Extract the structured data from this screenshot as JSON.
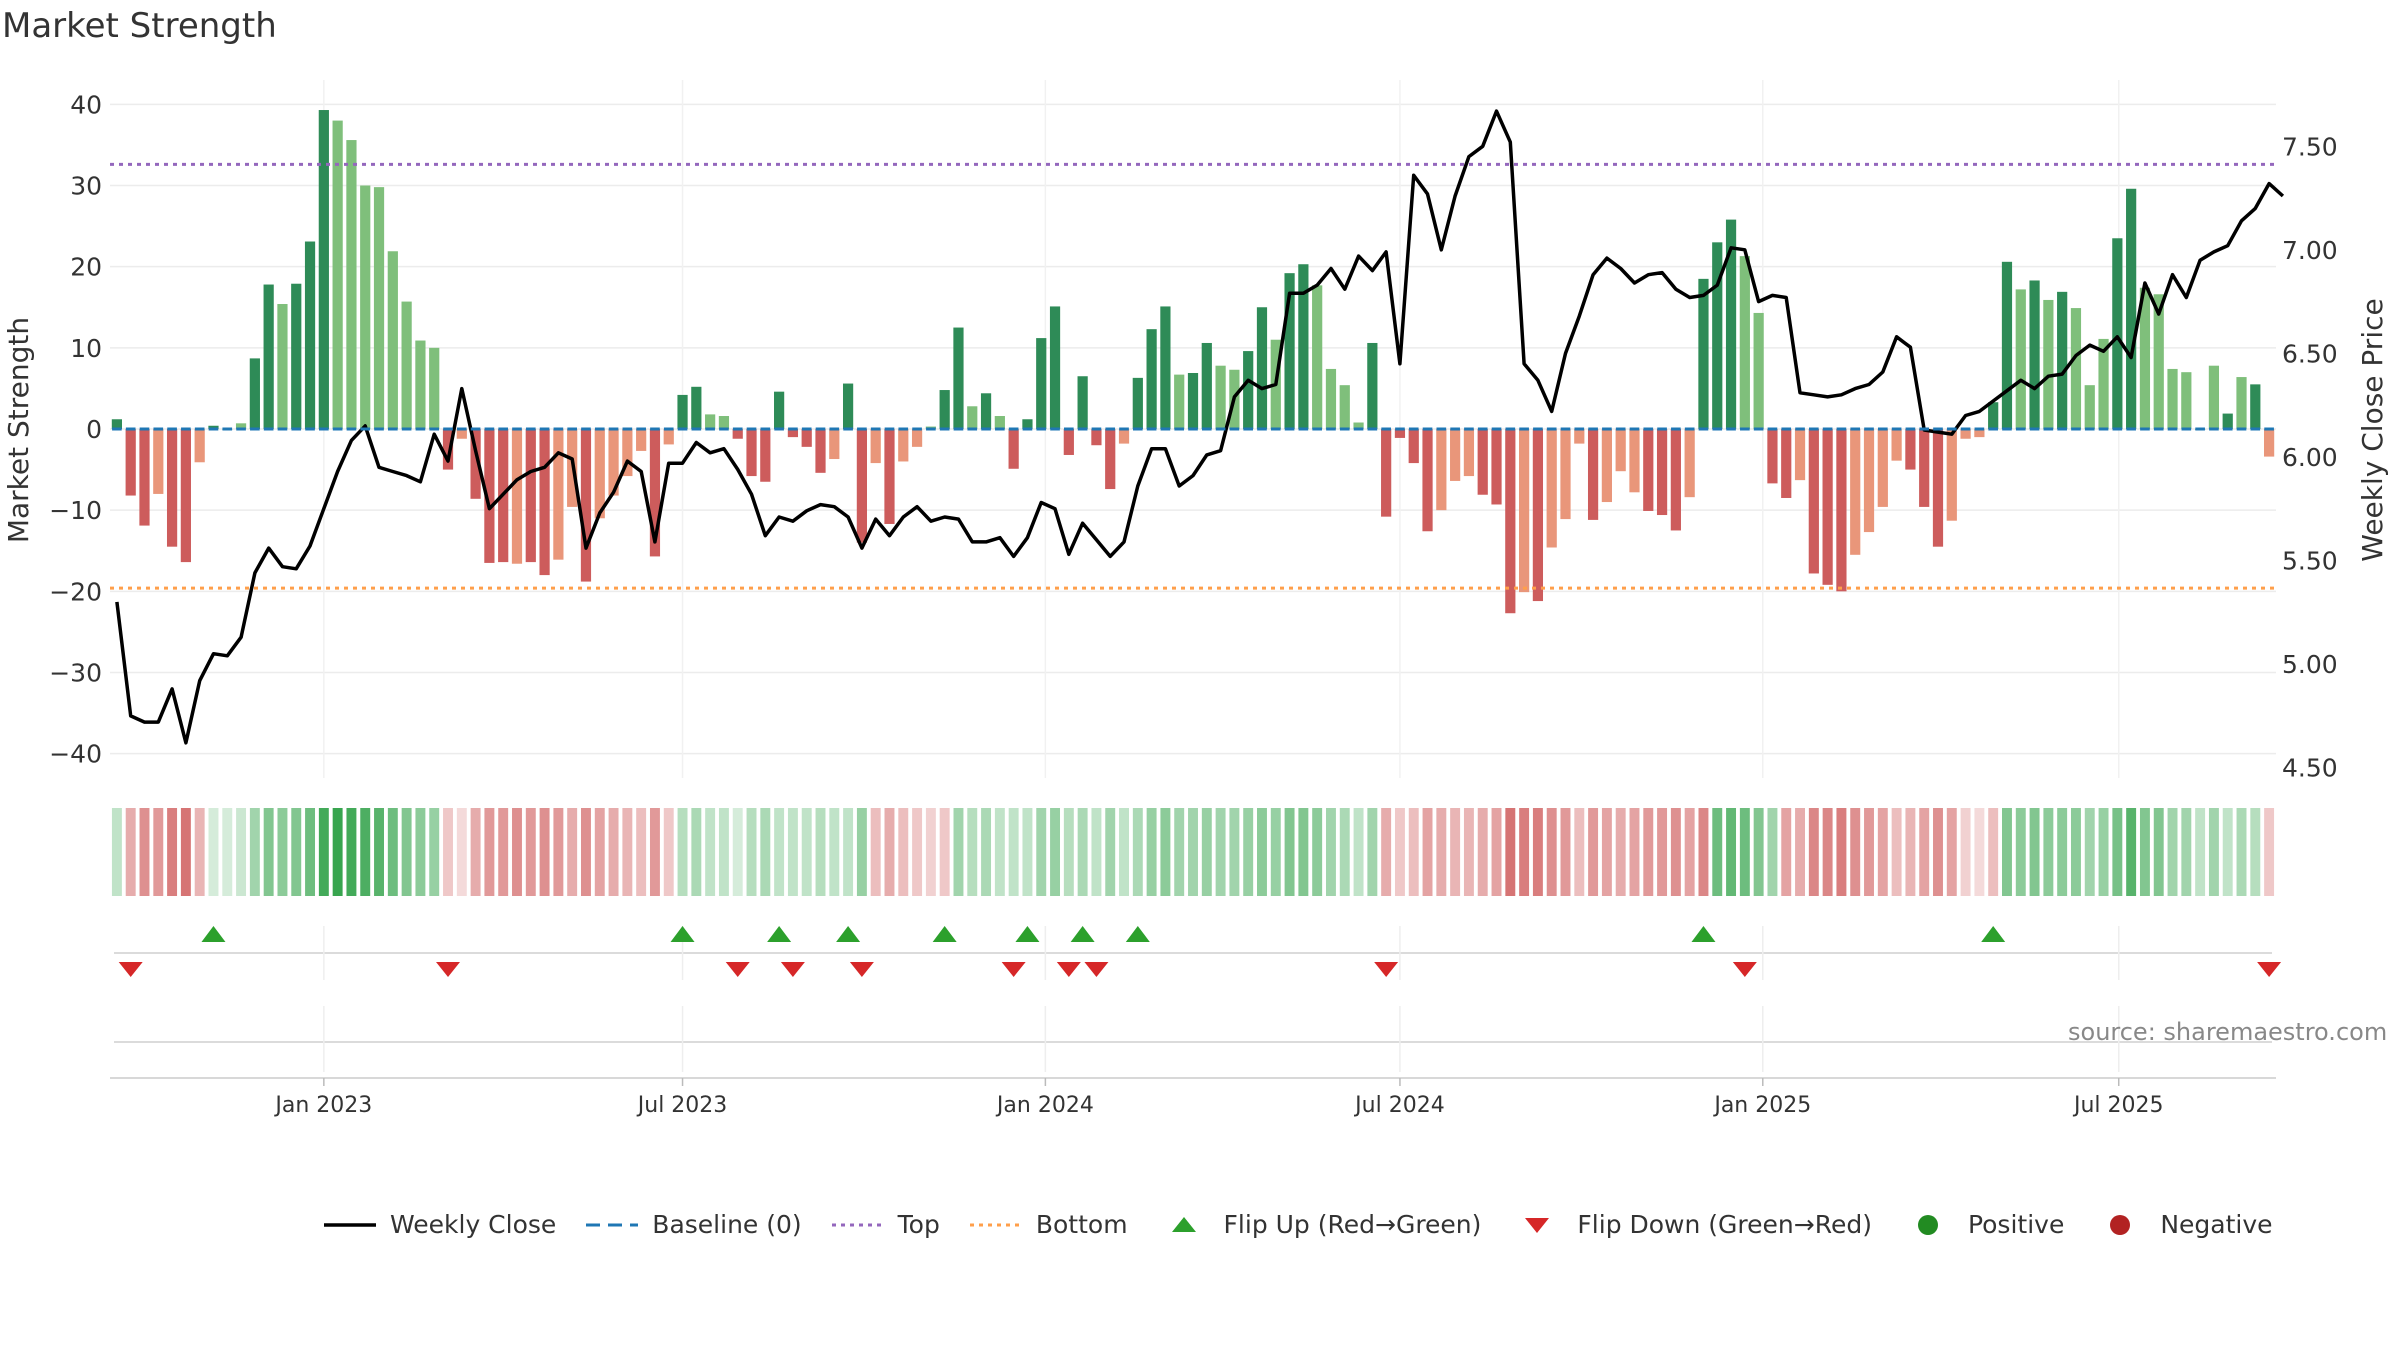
{
  "title": "Market Strength",
  "source_note": "source: sharemaestro.com",
  "colors": {
    "strong_green": "#2e8b57",
    "light_green": "#7fbf7b",
    "strong_red": "#cd5c5c",
    "light_red": "#e9967a",
    "close_line": "#000000",
    "baseline": "#1f77b4",
    "top": "#9467bd",
    "bottom": "#ff9f4a",
    "flip_up": "#2ca02c",
    "flip_down": "#d62728",
    "positive": "#228b22",
    "negative": "#b22222"
  },
  "legend": [
    {
      "key": "close",
      "label": "Weekly Close"
    },
    {
      "key": "baseline",
      "label": "Baseline (0)"
    },
    {
      "key": "top",
      "label": "Top"
    },
    {
      "key": "bottom",
      "label": "Bottom"
    },
    {
      "key": "flip_up",
      "label": "Flip Up (Red→Green)"
    },
    {
      "key": "flip_down",
      "label": "Flip Down (Green→Red)"
    },
    {
      "key": "positive",
      "label": "Positive"
    },
    {
      "key": "negative",
      "label": "Negative"
    }
  ],
  "chart_data": {
    "type": "bar",
    "ylabel": "Market Strength",
    "ylabel_right": "Weekly Close Price",
    "ylim": [
      -43,
      43
    ],
    "y_ticks": [
      -40,
      -30,
      -20,
      -10,
      0,
      10,
      20,
      30,
      40
    ],
    "y_tick_labels": [
      "−40",
      "−30",
      "−20",
      "−10",
      "0",
      "10",
      "20",
      "30",
      "40"
    ],
    "ylim_right": [
      4.45,
      7.82
    ],
    "y_right_ticks": [
      4.5,
      5.0,
      5.5,
      6.0,
      6.5,
      7.0,
      7.5
    ],
    "y_right_tick_labels": [
      "4.50",
      "5.00",
      "5.50",
      "6.00",
      "6.50",
      "7.00",
      "7.50"
    ],
    "x_tick_labels": [
      "Jan 2023",
      "Jul 2023",
      "Jan 2024",
      "Jul 2024",
      "Jan 2025",
      "Jul 2025"
    ],
    "x_tick_weeks": [
      15,
      41,
      67.3,
      93,
      119.3,
      145.1
    ],
    "top_level": 32.6,
    "bottom_level": -19.6,
    "baseline": 0,
    "strength": [
      1.2,
      -8.2,
      -11.9,
      -8.0,
      -14.5,
      -16.4,
      -4.1,
      0.4,
      0.0,
      0.7,
      8.7,
      17.8,
      15.4,
      17.9,
      23.1,
      39.3,
      38.0,
      35.6,
      30.0,
      29.8,
      21.9,
      15.7,
      10.9,
      10.0,
      -5.0,
      -1.2,
      -8.6,
      -16.5,
      -16.4,
      -16.6,
      -16.4,
      -18.0,
      -16.1,
      -9.6,
      -18.8,
      -11.0,
      -8.2,
      -5.8,
      -2.7,
      -15.7,
      -1.9,
      4.2,
      5.2,
      1.8,
      1.6,
      -1.2,
      -5.8,
      -6.5,
      4.6,
      -1.0,
      -2.2,
      -5.4,
      -3.7,
      5.6,
      -14.0,
      -4.2,
      -11.7,
      -4.0,
      -2.2,
      0.3,
      4.8,
      12.5,
      2.8,
      4.4,
      1.6,
      -4.9,
      1.2,
      11.2,
      15.1,
      -3.2,
      6.5,
      -2.0,
      -7.4,
      -1.8,
      6.3,
      12.3,
      15.1,
      6.7,
      6.9,
      10.6,
      7.8,
      7.3,
      9.6,
      15.0,
      11.0,
      19.2,
      20.3,
      17.7,
      7.4,
      5.4,
      0.8,
      10.6,
      -10.8,
      -1.1,
      -4.2,
      -12.6,
      -10.0,
      -6.4,
      -5.8,
      -8.1,
      -9.3,
      -22.7,
      -20.1,
      -21.2,
      -14.6,
      -11.1,
      -1.8,
      -11.2,
      -9.0,
      -5.2,
      -7.8,
      -10.1,
      -10.6,
      -12.5,
      -8.4,
      18.5,
      23.0,
      25.8,
      21.3,
      14.3,
      -6.7,
      -8.5,
      -6.3,
      -17.8,
      -19.2,
      -20.0,
      -15.5,
      -12.7,
      -9.6,
      -3.9,
      -5.0,
      -9.6,
      -14.5,
      -11.3,
      -1.2,
      -1.0,
      3.3,
      20.6,
      17.2,
      18.3,
      15.9,
      16.9,
      14.9,
      5.4,
      11.1,
      23.5,
      29.6,
      17.4,
      16.6,
      7.4,
      7.0,
      0.0,
      7.8,
      1.9,
      6.4,
      5.5,
      -3.4
    ],
    "strength_shade": [
      "dark",
      "dark",
      "dark",
      "light",
      "dark",
      "dark",
      "light",
      "dark",
      "light",
      "light",
      "dark",
      "dark",
      "light",
      "dark",
      "dark",
      "dark",
      "light",
      "light",
      "light",
      "light",
      "light",
      "light",
      "light",
      "light",
      "dark",
      "light",
      "dark",
      "dark",
      "dark",
      "light",
      "dark",
      "dark",
      "light",
      "light",
      "dark",
      "light",
      "light",
      "light",
      "light",
      "dark",
      "light",
      "dark",
      "dark",
      "light",
      "light",
      "dark",
      "dark",
      "dark",
      "dark",
      "dark",
      "dark",
      "dark",
      "light",
      "dark",
      "dark",
      "light",
      "dark",
      "light",
      "light",
      "light",
      "dark",
      "dark",
      "light",
      "dark",
      "light",
      "dark",
      "dark",
      "dark",
      "dark",
      "dark",
      "dark",
      "dark",
      "dark",
      "light",
      "dark",
      "dark",
      "dark",
      "light",
      "dark",
      "dark",
      "light",
      "light",
      "dark",
      "dark",
      "light",
      "dark",
      "dark",
      "light",
      "light",
      "light",
      "light",
      "dark",
      "dark",
      "dark",
      "dark",
      "dark",
      "light",
      "light",
      "light",
      "dark",
      "dark",
      "dark",
      "light",
      "dark",
      "light",
      "light",
      "light",
      "dark",
      "light",
      "light",
      "light",
      "dark",
      "dark",
      "dark",
      "light",
      "dark",
      "dark",
      "dark",
      "light",
      "light",
      "dark",
      "dark",
      "light",
      "dark",
      "dark",
      "dark",
      "light",
      "light",
      "light",
      "light",
      "dark",
      "dark",
      "dark",
      "light",
      "light",
      "light",
      "dark",
      "dark",
      "light",
      "dark",
      "light",
      "dark",
      "light",
      "light",
      "light",
      "dark",
      "dark",
      "light",
      "light",
      "light",
      "light",
      "dark",
      "light",
      "dark",
      "light",
      "dark"
    ],
    "close": [
      5.3,
      4.75,
      4.72,
      4.72,
      4.88,
      4.62,
      4.92,
      5.05,
      5.04,
      5.13,
      5.44,
      5.56,
      5.47,
      5.46,
      5.57,
      5.75,
      5.93,
      6.08,
      6.15,
      5.95,
      5.93,
      5.91,
      5.88,
      6.11,
      5.98,
      6.33,
      6.03,
      5.75,
      5.82,
      5.89,
      5.93,
      5.95,
      6.02,
      5.99,
      5.56,
      5.73,
      5.83,
      5.98,
      5.93,
      5.59,
      5.97,
      5.97,
      6.07,
      6.02,
      6.04,
      5.94,
      5.82,
      5.62,
      5.71,
      5.69,
      5.74,
      5.77,
      5.76,
      5.71,
      5.56,
      5.7,
      5.62,
      5.71,
      5.76,
      5.69,
      5.71,
      5.7,
      5.59,
      5.59,
      5.61,
      5.52,
      5.61,
      5.78,
      5.75,
      5.53,
      5.68,
      5.6,
      5.52,
      5.59,
      5.86,
      6.04,
      6.04,
      5.86,
      5.91,
      6.01,
      6.03,
      6.29,
      6.37,
      6.33,
      6.35,
      6.79,
      6.79,
      6.83,
      6.91,
      6.81,
      6.97,
      6.9,
      6.99,
      6.45,
      7.36,
      7.27,
      7.0,
      7.26,
      7.45,
      7.5,
      7.67,
      7.52,
      6.45,
      6.37,
      6.22,
      6.5,
      6.68,
      6.88,
      6.96,
      6.91,
      6.84,
      6.88,
      6.89,
      6.81,
      6.77,
      6.78,
      6.83,
      7.01,
      7.0,
      6.75,
      6.78,
      6.77,
      6.31,
      6.3,
      6.29,
      6.3,
      6.33,
      6.35,
      6.41,
      6.58,
      6.53,
      6.13,
      6.12,
      6.11,
      6.2,
      6.22,
      6.27,
      6.32,
      6.37,
      6.33,
      6.39,
      6.4,
      6.49,
      6.54,
      6.51,
      6.58,
      6.48,
      6.84,
      6.69,
      6.88,
      6.77,
      6.95,
      6.99,
      7.02,
      7.14,
      7.2,
      7.32,
      7.26
    ],
    "regime": [
      "g",
      "r",
      "r",
      "r",
      "r",
      "r",
      "r",
      "g",
      "g",
      "g",
      "g",
      "g",
      "g",
      "g",
      "g",
      "g",
      "g",
      "g",
      "g",
      "g",
      "g",
      "g",
      "g",
      "g",
      "r",
      "r",
      "r",
      "r",
      "r",
      "r",
      "r",
      "r",
      "r",
      "r",
      "r",
      "r",
      "r",
      "r",
      "r",
      "r",
      "r",
      "g",
      "g",
      "g",
      "g",
      "g",
      "g",
      "g",
      "g",
      "g",
      "g",
      "g",
      "g",
      "g",
      "g",
      "r",
      "r",
      "r",
      "r",
      "r",
      "r",
      "g",
      "g",
      "g",
      "g",
      "g",
      "g",
      "g",
      "g",
      "g",
      "g",
      "g",
      "g",
      "g",
      "g",
      "g",
      "g",
      "g",
      "g",
      "g",
      "g",
      "g",
      "g",
      "g",
      "g",
      "g",
      "g",
      "g",
      "g",
      "g",
      "g",
      "g",
      "r",
      "r",
      "r",
      "r",
      "r",
      "r",
      "r",
      "r",
      "r",
      "r",
      "r",
      "r",
      "r",
      "r",
      "r",
      "r",
      "r",
      "r",
      "r",
      "r",
      "r",
      "r",
      "r",
      "r",
      "g",
      "g",
      "g",
      "g",
      "g",
      "r",
      "r",
      "r",
      "r",
      "r",
      "r",
      "r",
      "r",
      "r",
      "r",
      "r",
      "r",
      "r",
      "r",
      "r",
      "r",
      "g",
      "g",
      "g",
      "g",
      "g",
      "g",
      "g",
      "g",
      "g",
      "g",
      "g",
      "g",
      "g",
      "g",
      "g",
      "g",
      "g",
      "g",
      "g",
      "r"
    ],
    "heat": [
      0.3,
      0.45,
      0.6,
      0.55,
      0.7,
      0.75,
      0.4,
      0.2,
      0.2,
      0.25,
      0.45,
      0.6,
      0.55,
      0.6,
      0.7,
      0.9,
      0.95,
      0.9,
      0.85,
      0.8,
      0.7,
      0.6,
      0.55,
      0.5,
      0.3,
      0.2,
      0.45,
      0.55,
      0.55,
      0.6,
      0.55,
      0.6,
      0.55,
      0.45,
      0.6,
      0.5,
      0.45,
      0.4,
      0.35,
      0.55,
      0.3,
      0.35,
      0.4,
      0.3,
      0.3,
      0.2,
      0.35,
      0.4,
      0.3,
      0.3,
      0.3,
      0.35,
      0.3,
      0.3,
      0.5,
      0.35,
      0.45,
      0.35,
      0.3,
      0.25,
      0.3,
      0.45,
      0.35,
      0.4,
      0.3,
      0.3,
      0.3,
      0.45,
      0.5,
      0.35,
      0.4,
      0.3,
      0.45,
      0.3,
      0.4,
      0.5,
      0.55,
      0.45,
      0.45,
      0.5,
      0.45,
      0.45,
      0.5,
      0.55,
      0.5,
      0.6,
      0.6,
      0.55,
      0.45,
      0.4,
      0.3,
      0.45,
      0.45,
      0.3,
      0.35,
      0.5,
      0.45,
      0.4,
      0.4,
      0.45,
      0.5,
      0.75,
      0.7,
      0.7,
      0.6,
      0.55,
      0.35,
      0.55,
      0.5,
      0.45,
      0.5,
      0.55,
      0.55,
      0.6,
      0.5,
      0.65,
      0.7,
      0.75,
      0.7,
      0.6,
      0.45,
      0.5,
      0.45,
      0.65,
      0.65,
      0.7,
      0.6,
      0.55,
      0.5,
      0.35,
      0.4,
      0.5,
      0.6,
      0.5,
      0.25,
      0.2,
      0.35,
      0.6,
      0.55,
      0.6,
      0.55,
      0.55,
      0.55,
      0.45,
      0.5,
      0.65,
      0.8,
      0.6,
      0.6,
      0.45,
      0.45,
      0.3,
      0.45,
      0.3,
      0.4,
      0.35,
      0.3
    ],
    "flip_up_weeks": [
      7,
      41,
      48,
      53,
      60,
      66,
      70,
      74,
      115,
      136
    ],
    "flip_down_weeks": [
      1,
      24,
      45,
      49,
      54,
      65,
      69,
      71,
      92,
      118,
      156
    ]
  }
}
